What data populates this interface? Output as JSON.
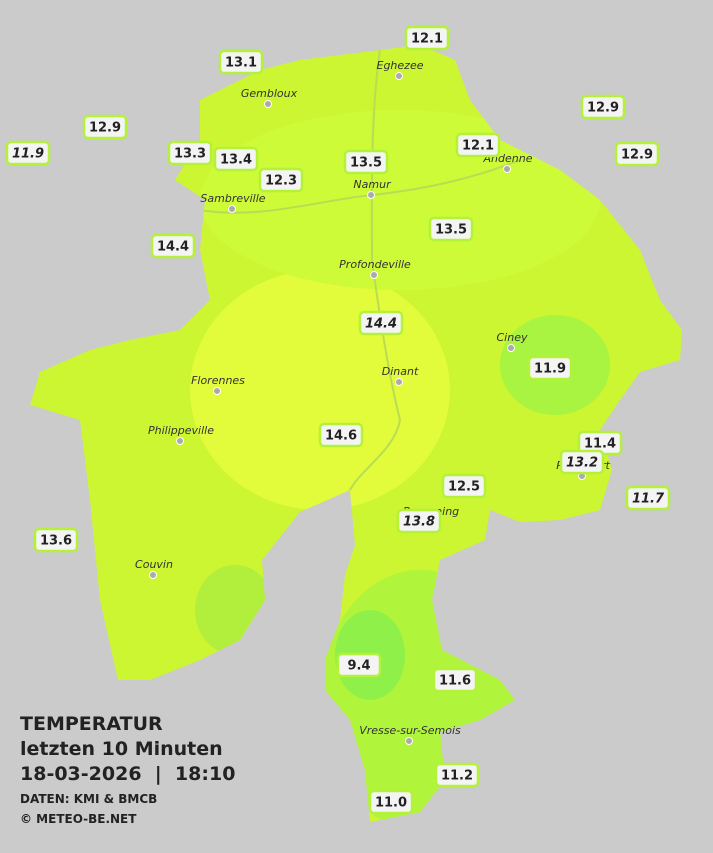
{
  "caption": {
    "title": "TEMPERATUR",
    "subtitle": "letzten 10 Minuten",
    "datetime": "18-03-2026  |  18:10",
    "source": "DATEN: KMI & BMCB",
    "copyright": "© METEO-BE.NET"
  },
  "cities": [
    "Eghezee",
    "Gembloux",
    "Andenne",
    "Namur",
    "Sambreville",
    "Profondeville",
    "Ciney",
    "Dinant",
    "Florennes",
    "Philippeville",
    "Couvin",
    "Vresse-sur-Semois",
    "Beauraing",
    "Rochefort"
  ],
  "stations": [
    {
      "value": "12.1"
    },
    {
      "value": "13.1"
    },
    {
      "value": "12.9"
    },
    {
      "value": "11.9",
      "style": "italic"
    },
    {
      "value": "13.3"
    },
    {
      "value": "13.4"
    },
    {
      "value": "12.3"
    },
    {
      "value": "13.5"
    },
    {
      "value": "12.1"
    },
    {
      "value": "12.9"
    },
    {
      "value": "12.9"
    },
    {
      "value": "14.4"
    },
    {
      "value": "13.5"
    },
    {
      "value": "14.4",
      "style": "italic"
    },
    {
      "value": "11.9"
    },
    {
      "value": "14.6"
    },
    {
      "value": "11.4"
    },
    {
      "value": "13.2",
      "style": "italic"
    },
    {
      "value": "12.5"
    },
    {
      "value": "11.7",
      "style": "italic"
    },
    {
      "value": "13.8",
      "style": "italic"
    },
    {
      "value": "13.6"
    },
    {
      "value": "9.4"
    },
    {
      "value": "11.6"
    },
    {
      "value": "11.2"
    },
    {
      "value": "11.0"
    }
  ]
}
